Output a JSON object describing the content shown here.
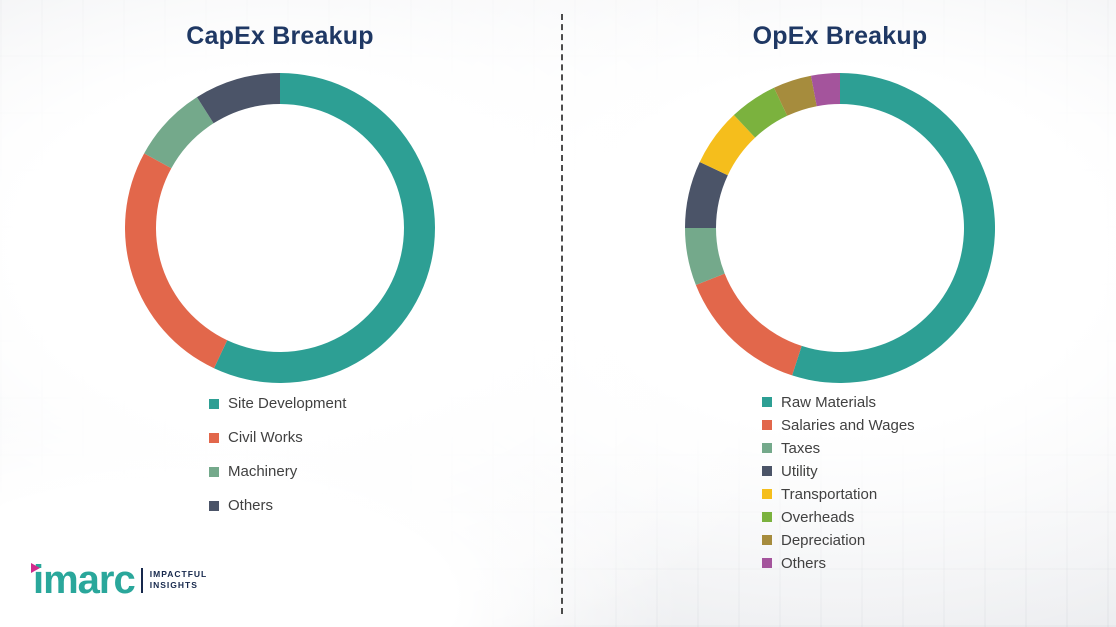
{
  "page": {
    "divider_style": "dashed-vertical"
  },
  "chart_data": [
    {
      "type": "pie",
      "subtype": "donut",
      "title": "CapEx Breakup",
      "labels": [
        "Site Development",
        "Civil Works",
        "Machinery",
        "Others"
      ],
      "values": [
        57,
        26,
        8,
        9
      ],
      "colors": [
        "#2d9f94",
        "#e2674b",
        "#74a98b",
        "#4b5468"
      ],
      "start_angle": 0,
      "direction": "clockwise",
      "legend_position": "below-left",
      "title_color": "#1f3864"
    },
    {
      "type": "pie",
      "subtype": "donut",
      "title": "OpEx Breakup",
      "labels": [
        "Raw Materials",
        "Salaries and Wages",
        "Taxes",
        "Utility",
        "Transportation",
        "Overheads",
        "Depreciation",
        "Others"
      ],
      "values": [
        55,
        14,
        6,
        7,
        6,
        5,
        4,
        3
      ],
      "colors": [
        "#2d9f94",
        "#e2674b",
        "#74a98b",
        "#4b5468",
        "#f5be1c",
        "#7bb23e",
        "#a68c3d",
        "#a4549c"
      ],
      "start_angle": 0,
      "direction": "clockwise",
      "legend_position": "below-left",
      "title_color": "#1f3864"
    }
  ],
  "logo": {
    "brand": "imarc",
    "tagline_line1": "IMPACTFUL",
    "tagline_line2": "INSIGHTS",
    "brand_color": "#2aa79b",
    "accent_color": "#d12a8c"
  }
}
